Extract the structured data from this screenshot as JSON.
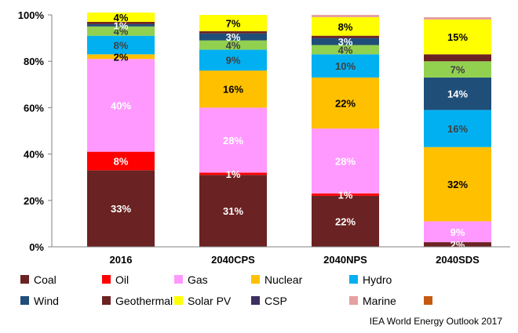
{
  "chart_data": {
    "type": "bar",
    "stacked": true,
    "categories": [
      "2016",
      "2040CPS",
      "2040NPS",
      "2040SDS"
    ],
    "ylim": [
      0,
      100
    ],
    "yticks": [
      0,
      20,
      40,
      60,
      80,
      100
    ],
    "ytick_labels": [
      "0%",
      "20%",
      "40%",
      "60%",
      "80%",
      "100%"
    ],
    "grid": false,
    "legend_position": "bottom",
    "series": [
      {
        "name": "Coal",
        "color": "#6b2222",
        "values": [
          33,
          31,
          22,
          2
        ],
        "labels": [
          "33%",
          "31%",
          "22%",
          "2%"
        ],
        "label_color": "#ffffff"
      },
      {
        "name": "Oil",
        "color": "#ff0000",
        "values": [
          8,
          1,
          1,
          0
        ],
        "labels": [
          "8%",
          "1%",
          "1%",
          ""
        ],
        "label_color": "#ffffff"
      },
      {
        "name": "Gas",
        "color": "#ff99ff",
        "values": [
          40,
          28,
          28,
          9
        ],
        "labels": [
          "40%",
          "28%",
          "28%",
          "9%"
        ],
        "label_color": "#ffffff"
      },
      {
        "name": "Nuclear",
        "color": "#ffc000",
        "values": [
          2,
          16,
          22,
          32
        ],
        "labels": [
          "2%",
          "16%",
          "22%",
          "32%"
        ],
        "label_color": "#000000"
      },
      {
        "name": "Hydro",
        "color": "#00b0f0",
        "values": [
          8,
          9,
          10,
          16
        ],
        "labels": [
          "8%",
          "9%",
          "10%",
          "16%"
        ],
        "label_color": "#404040"
      },
      {
        "name": "Wind",
        "color": "#1f4e79",
        "values": [
          0,
          0,
          0,
          14
        ],
        "labels": [
          "",
          "",
          "",
          "14%"
        ],
        "label_color": "#ffffff"
      },
      {
        "name": "Geothermal",
        "color": "#6b2222",
        "values": [
          0,
          0,
          0,
          0
        ],
        "labels": [
          "",
          "",
          "",
          ""
        ],
        "label_color": "#ffffff"
      },
      {
        "name": "Solar PV",
        "color": "#92d050",
        "values": [
          4,
          4,
          4,
          7
        ],
        "labels": [
          "4%",
          "4%",
          "4%",
          "7%"
        ],
        "label_color": "#404040"
      },
      {
        "name": "CSP",
        "color": "#1f4e79",
        "values": [
          1,
          3,
          3,
          0
        ],
        "labels": [
          "1%",
          "3%",
          "3%",
          ""
        ],
        "label_color": "#ffffff"
      },
      {
        "name": "Marine",
        "color": "#6b2222",
        "values": [
          1,
          1,
          1,
          3
        ],
        "labels": [
          "",
          "",
          "",
          ""
        ],
        "label_color": "#ffffff"
      },
      {
        "name": "",
        "color": "#ffff00",
        "values": [
          4,
          7,
          8,
          15
        ],
        "labels": [
          "4%",
          "7%",
          "8%",
          "15%"
        ],
        "label_color": "#000000"
      },
      {
        "name": "",
        "color": "#e6a0a0",
        "values": [
          0,
          0,
          1,
          1
        ],
        "labels": [
          "",
          "",
          "",
          ""
        ],
        "label_color": "#000000"
      }
    ],
    "legend": [
      {
        "name": "Coal",
        "color": "#6b2222"
      },
      {
        "name": "Oil",
        "color": "#ff0000"
      },
      {
        "name": "Gas",
        "color": "#ff99ff"
      },
      {
        "name": "Nuclear",
        "color": "#ffc000"
      },
      {
        "name": "Hydro",
        "color": "#00b0f0"
      },
      {
        "name": "Wind",
        "color": "#1f4e79"
      },
      {
        "name": "Geothermal",
        "color": "#6b2222"
      },
      {
        "name": "Solar PV",
        "color": "#ffff00"
      },
      {
        "name": "CSP",
        "color": "#3d3060"
      },
      {
        "name": "Marine",
        "color": "#e6a0a0"
      },
      {
        "name": "",
        "color": "#c55a11"
      }
    ]
  },
  "source_note": "IEA World Energy Outlook 2017"
}
